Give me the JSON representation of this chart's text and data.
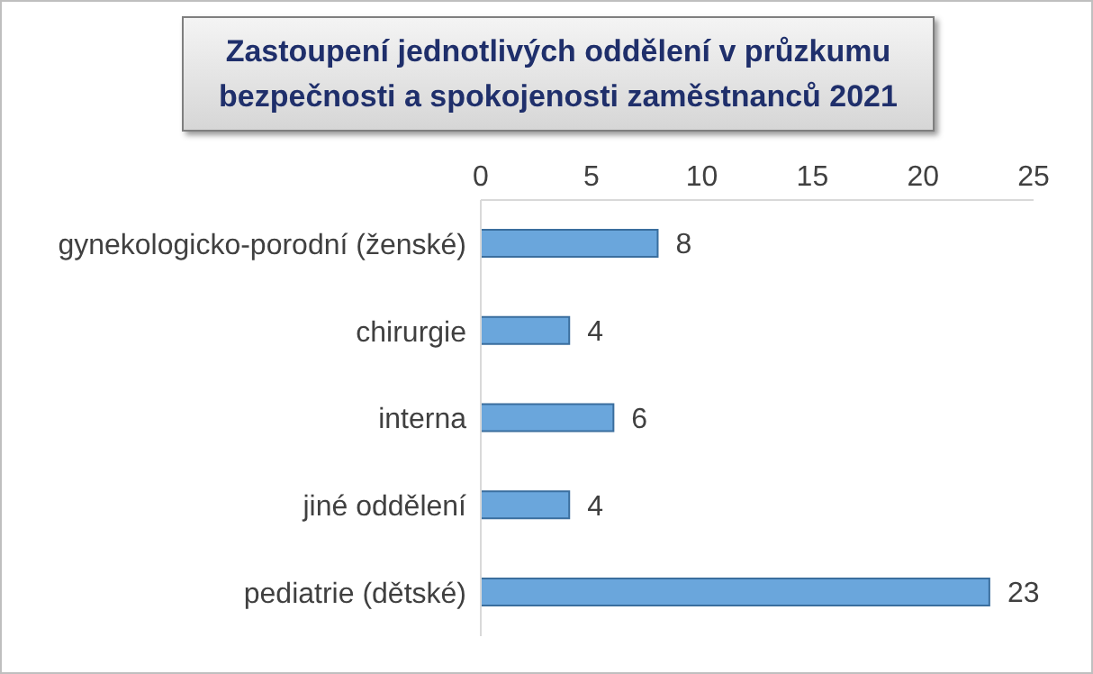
{
  "chart_data": {
    "type": "bar",
    "orientation": "horizontal",
    "title": "Zastoupení jednotlivých oddělení v průzkumu bezpečnosti a spokojenosti zaměstnanců 2021",
    "categories": [
      "gynekologicko-porodní (ženské)",
      "chirurgie",
      "interna",
      "jiné oddělení",
      "pediatrie (dětské)"
    ],
    "values": [
      8,
      4,
      6,
      4,
      23
    ],
    "color": "#6aa6dc",
    "xlim": [
      0,
      25
    ],
    "xticks": [
      0,
      5,
      10,
      15,
      20,
      25
    ],
    "data_labels": true,
    "grid": false
  }
}
